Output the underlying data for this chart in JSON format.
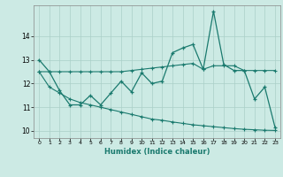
{
  "xlabel": "Humidex (Indice chaleur)",
  "bg_color": "#cceae4",
  "line_color": "#1a7a6e",
  "grid_color": "#aacfc8",
  "xlim": [
    -0.5,
    23.5
  ],
  "ylim": [
    9.7,
    15.3
  ],
  "x_ticks": [
    0,
    1,
    2,
    3,
    4,
    5,
    6,
    7,
    8,
    9,
    10,
    11,
    12,
    13,
    14,
    15,
    16,
    17,
    18,
    19,
    20,
    21,
    22,
    23
  ],
  "y_ticks": [
    10,
    11,
    12,
    13,
    14
  ],
  "main_x": [
    0,
    1,
    2,
    3,
    4,
    5,
    6,
    7,
    8,
    9,
    10,
    11,
    12,
    13,
    14,
    15,
    16,
    17,
    18,
    19,
    20,
    21,
    22,
    23
  ],
  "main_y": [
    13.0,
    12.5,
    11.7,
    11.1,
    11.1,
    11.5,
    11.1,
    11.6,
    12.1,
    11.65,
    12.45,
    12.0,
    12.1,
    13.3,
    13.5,
    13.65,
    12.6,
    15.05,
    12.8,
    12.55,
    12.55,
    11.35,
    11.85,
    10.15
  ],
  "upper_x": [
    0,
    1,
    2,
    3,
    4,
    5,
    6,
    7,
    8,
    9,
    10,
    11,
    12,
    13,
    14,
    15,
    16,
    17,
    18,
    19,
    20,
    21,
    22,
    23
  ],
  "upper_y": [
    12.5,
    12.5,
    12.5,
    12.5,
    12.5,
    12.5,
    12.5,
    12.5,
    12.5,
    12.55,
    12.6,
    12.65,
    12.7,
    12.75,
    12.8,
    12.85,
    12.6,
    12.75,
    12.75,
    12.75,
    12.55,
    12.55,
    12.55,
    12.55
  ],
  "lower_x": [
    0,
    1,
    2,
    3,
    4,
    5,
    6,
    7,
    8,
    9,
    10,
    11,
    12,
    13,
    14,
    15,
    16,
    17,
    18,
    19,
    20,
    21,
    22,
    23
  ],
  "lower_y": [
    12.5,
    11.85,
    11.6,
    11.35,
    11.2,
    11.1,
    11.0,
    10.9,
    10.8,
    10.7,
    10.6,
    10.5,
    10.45,
    10.38,
    10.32,
    10.26,
    10.22,
    10.18,
    10.14,
    10.1,
    10.07,
    10.05,
    10.03,
    10.02
  ]
}
